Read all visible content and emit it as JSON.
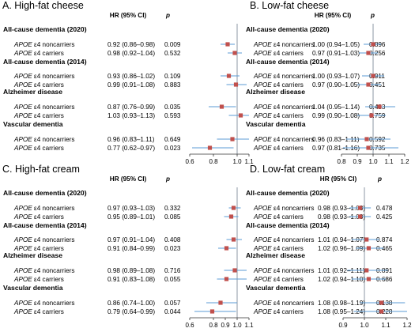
{
  "style": {
    "point_color": "#c0504d",
    "ci_color": "#5b9bd5",
    "refline_color": "#7f8c9a",
    "axis_color": "#333333"
  },
  "header": {
    "hr_label": "HR (95% CI)",
    "p_label": "p"
  },
  "sections": [
    "All-cause dementia (2020)",
    "All-cause dementia (2014)",
    "Alzheimer disease",
    "Vascular dementia"
  ],
  "row_labels": [
    {
      "italic": "APOE",
      "rest": " ε4 noncarriers"
    },
    {
      "italic": "APOE",
      "rest": " ε4 carriers"
    }
  ],
  "chart_data": [
    {
      "type": "forest",
      "title": "A. High-fat cheese",
      "xlim": [
        0.6,
        1.1
      ],
      "x_ticks": [
        {
          "value": 0.6,
          "label": "0.6"
        },
        {
          "value": 0.8,
          "label": "0.8"
        },
        {
          "value": 1.0,
          "label": "1.0"
        },
        {
          "value": 1.1,
          "label": "1.1"
        }
      ],
      "rows": [
        {
          "hr": 0.92,
          "lo": 0.86,
          "hi": 0.98,
          "text": "0.92 (0.86–0.98)",
          "p": "0.009"
        },
        {
          "hr": 0.98,
          "lo": 0.92,
          "hi": 1.04,
          "text": "0.98 (0.92–1.04)",
          "p": "0.532"
        },
        {
          "hr": 0.93,
          "lo": 0.86,
          "hi": 1.02,
          "text": "0.93 (0.86–1.02)",
          "p": "0.109"
        },
        {
          "hr": 0.99,
          "lo": 0.91,
          "hi": 1.08,
          "text": "0.99 (0.91–1.08)",
          "p": "0.883"
        },
        {
          "hr": 0.87,
          "lo": 0.76,
          "hi": 0.99,
          "text": "0.87 (0.76–0.99)",
          "p": "0.035"
        },
        {
          "hr": 1.03,
          "lo": 0.93,
          "hi": 1.13,
          "text": "1.03 (0.93–1.13)",
          "p": "0.593"
        },
        {
          "hr": 0.96,
          "lo": 0.83,
          "hi": 1.11,
          "text": "0.96 (0.83–1.11)",
          "p": "0.649"
        },
        {
          "hr": 0.77,
          "lo": 0.62,
          "hi": 0.97,
          "text": "0.77 (0.62–0.97)",
          "p": "0.023"
        }
      ]
    },
    {
      "type": "forest",
      "title": "B. Low-fat cheese",
      "xlim": [
        0.8,
        1.2
      ],
      "x_ticks": [
        {
          "value": 0.8,
          "label": "0.8"
        },
        {
          "value": 0.9,
          "label": "0.9"
        },
        {
          "value": 1.0,
          "label": "1.0"
        },
        {
          "value": 1.1,
          "label": "1.1"
        },
        {
          "value": 1.2,
          "label": "1.2"
        }
      ],
      "rows": [
        {
          "hr": 1.0,
          "lo": 0.94,
          "hi": 1.05,
          "text": "1.00 (0.94–1.05)",
          "p": "0.896"
        },
        {
          "hr": 0.97,
          "lo": 0.91,
          "hi": 1.03,
          "text": "0.97 (0.91–1.03)",
          "p": "0.256"
        },
        {
          "hr": 1.0,
          "lo": 0.93,
          "hi": 1.07,
          "text": "1.00 (0.93–1.07)",
          "p": "0.911"
        },
        {
          "hr": 0.97,
          "lo": 0.9,
          "hi": 1.05,
          "text": "0.97 (0.90–1.05)",
          "p": "0.451"
        },
        {
          "hr": 1.04,
          "lo": 0.95,
          "hi": 1.14,
          "text": "1.04 (0.95–1.14)",
          "p": "0.403"
        },
        {
          "hr": 0.99,
          "lo": 0.9,
          "hi": 1.08,
          "text": "0.99 (0.90–1.08)",
          "p": "0.759"
        },
        {
          "hr": 0.96,
          "lo": 0.83,
          "hi": 1.11,
          "text": "0.96 (0.83–1.11)",
          "p": "0.592"
        },
        {
          "hr": 0.97,
          "lo": 0.81,
          "hi": 1.16,
          "text": "0.97 (0.81–1.16)",
          "p": "0.735"
        }
      ]
    },
    {
      "type": "forest",
      "title": "C. High-fat cream",
      "xlim": [
        0.6,
        1.1
      ],
      "x_ticks": [
        {
          "value": 0.6,
          "label": "0.6"
        },
        {
          "value": 0.8,
          "label": "0.8"
        },
        {
          "value": 0.9,
          "label": "0.9"
        },
        {
          "value": 1.0,
          "label": "1.0"
        },
        {
          "value": 1.1,
          "label": "1.1"
        }
      ],
      "rows": [
        {
          "hr": 0.97,
          "lo": 0.93,
          "hi": 1.03,
          "text": "0.97 (0.93–1.03)",
          "p": "0.332"
        },
        {
          "hr": 0.95,
          "lo": 0.89,
          "hi": 1.01,
          "text": "0.95 (0.89–1.01)",
          "p": "0.085"
        },
        {
          "hr": 0.97,
          "lo": 0.91,
          "hi": 1.04,
          "text": "0.97 (0.91–1.04)",
          "p": "0.408"
        },
        {
          "hr": 0.91,
          "lo": 0.84,
          "hi": 0.99,
          "text": "0.91 (0.84–0.99)",
          "p": "0.023"
        },
        {
          "hr": 0.98,
          "lo": 0.89,
          "hi": 1.08,
          "text": "0.98 (0.89–1.08)",
          "p": "0.716"
        },
        {
          "hr": 0.91,
          "lo": 0.83,
          "hi": 1.08,
          "text": "0.91 (0.83–1.08)",
          "p": "0.055"
        },
        {
          "hr": 0.86,
          "lo": 0.74,
          "hi": 1.0,
          "text": "0.86 (0.74–1.00)",
          "p": "0.057"
        },
        {
          "hr": 0.79,
          "lo": 0.64,
          "hi": 0.99,
          "text": "0.79 (0.64–0.99)",
          "p": "0.044"
        }
      ]
    },
    {
      "type": "forest",
      "title": "D. Low-fat cream",
      "xlim": [
        0.9,
        1.2
      ],
      "x_ticks": [
        {
          "value": 0.9,
          "label": "0.9"
        },
        {
          "value": 1.0,
          "label": "1.0"
        },
        {
          "value": 1.1,
          "label": "1.1"
        },
        {
          "value": 1.2,
          "label": "1.2"
        }
      ],
      "rows": [
        {
          "hr": 0.98,
          "lo": 0.93,
          "hi": 1.03,
          "text": "0.98 (0.93–1.03)",
          "p": "0.478"
        },
        {
          "hr": 0.98,
          "lo": 0.93,
          "hi": 1.03,
          "text": "0.98 (0.93–1.03)",
          "p": "0.425"
        },
        {
          "hr": 1.01,
          "lo": 0.94,
          "hi": 1.07,
          "text": "1.01 (0.94–1.07)",
          "p": "0.874"
        },
        {
          "hr": 1.02,
          "lo": 0.96,
          "hi": 1.09,
          "text": "1.02 (0.96–1.09)",
          "p": "0.465"
        },
        {
          "hr": 1.01,
          "lo": 0.92,
          "hi": 1.11,
          "text": "1.01 (0.92–1.11)",
          "p": "0.891"
        },
        {
          "hr": 1.02,
          "lo": 0.94,
          "hi": 1.1,
          "text": "1.02 (0.94–1.10)",
          "p": "0.686"
        },
        {
          "hr": 1.08,
          "lo": 0.98,
          "hi": 1.19,
          "text": "1.08 (0.98–1.19)",
          "p": "0.138"
        },
        {
          "hr": 1.08,
          "lo": 0.95,
          "hi": 1.24,
          "text": "1.08 (0.95–1.24)",
          "p": "0.228"
        }
      ]
    }
  ]
}
